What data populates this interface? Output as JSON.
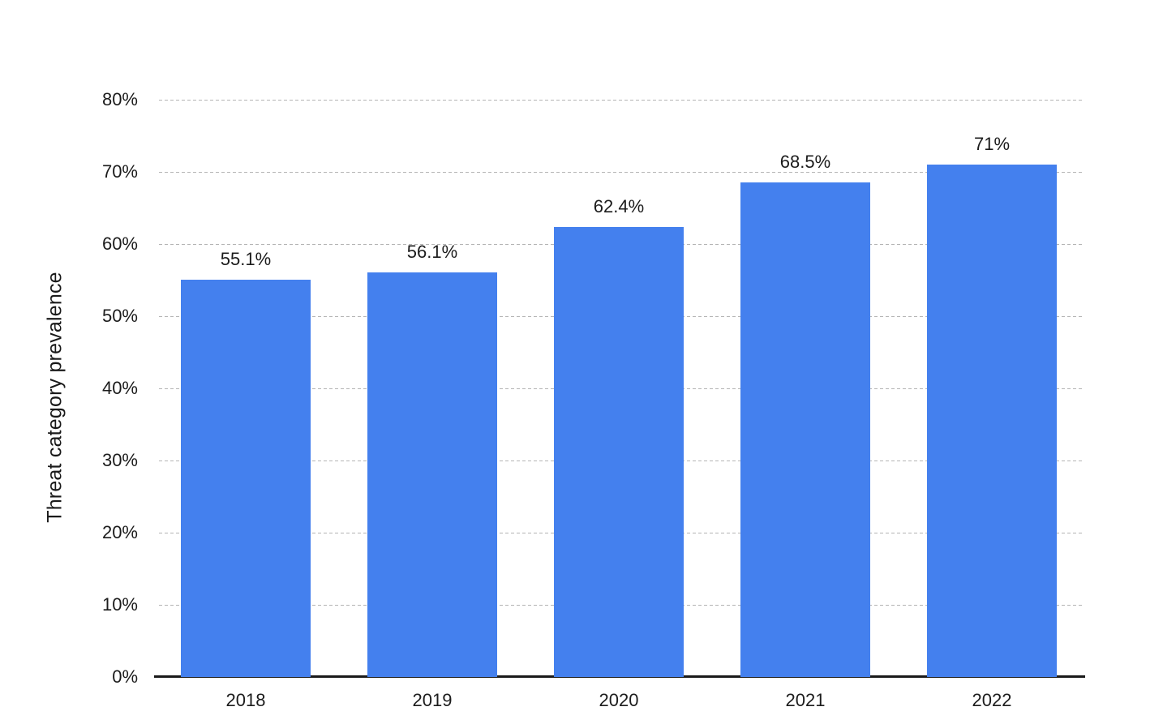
{
  "chart_data": {
    "type": "bar",
    "categories": [
      "2018",
      "2019",
      "2020",
      "2021",
      "2022"
    ],
    "values": [
      55.1,
      56.1,
      62.4,
      68.5,
      71
    ],
    "value_labels": [
      "55.1%",
      "56.1%",
      "62.4%",
      "68.5%",
      "71%"
    ],
    "title": "",
    "xlabel": "",
    "ylabel": "Threat category prevalence",
    "ylim": [
      0,
      80
    ],
    "y_ticks": [
      0,
      10,
      20,
      30,
      40,
      50,
      60,
      70,
      80
    ],
    "y_tick_labels": [
      "0%",
      "10%",
      "20%",
      "30%",
      "40%",
      "50%",
      "60%",
      "70%",
      "80%"
    ],
    "grid": "horizontal-dashed",
    "legend": "none",
    "colors": {
      "bar": "#4480ee",
      "background": "#ffffff",
      "text": "#1c1c1c",
      "gridline": "#b4b4b4",
      "axis_line": "#1a1a1a"
    }
  }
}
